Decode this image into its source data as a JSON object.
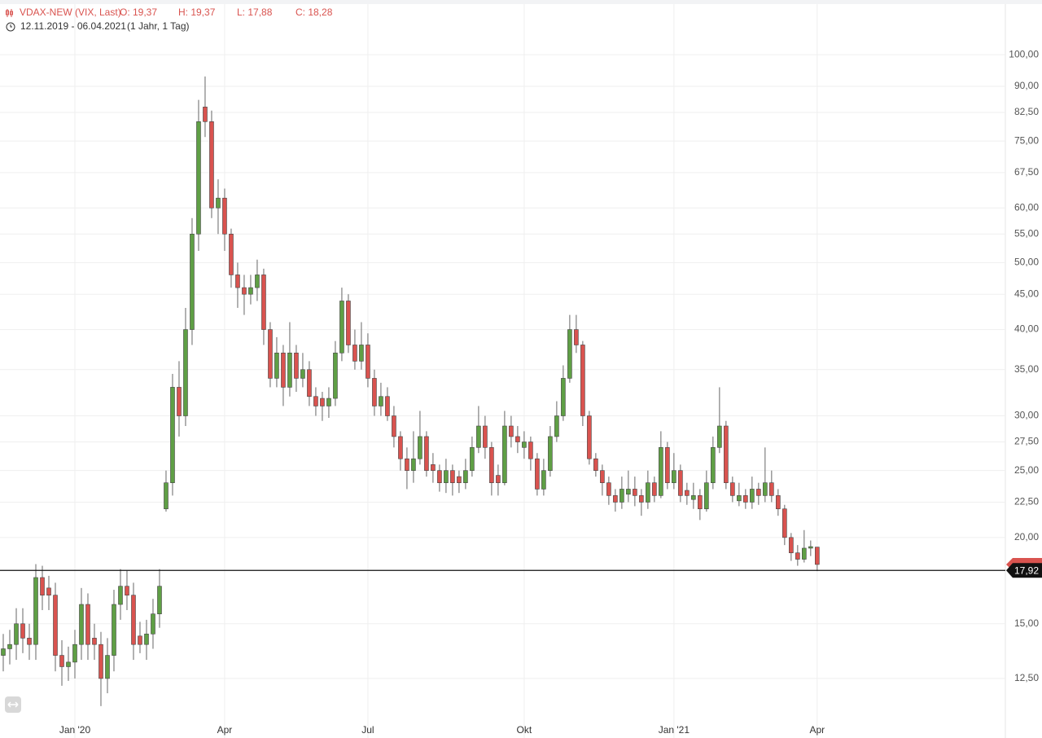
{
  "chart_data": {
    "type": "candlestick",
    "title": "VDAX-NEW (VIX, Last)",
    "ohlc_labels": [
      "O: 19,37",
      "H: 19,37",
      "L: 17,88",
      "C: 18,28"
    ],
    "range": "12.11.2019 - 06.04.2021",
    "period": "(1 Jahr, 1 Tag)",
    "log_scale": true,
    "grid": true,
    "up_color": "#5f9f45",
    "down_color": "#d9534f",
    "xlim": [
      -0.5,
      153.9
    ],
    "xticks": [
      {
        "value": 11,
        "label": "Jan '20"
      },
      {
        "value": 34,
        "label": "Apr"
      },
      {
        "value": 56,
        "label": "Jul"
      },
      {
        "value": 80,
        "label": "Okt"
      },
      {
        "value": 103,
        "label": "Jan '21"
      },
      {
        "value": 125,
        "label": "Apr"
      }
    ],
    "ylim": [
      10.25,
      120
    ],
    "yticks": [
      {
        "value": 12.5,
        "label": "12,50"
      },
      {
        "value": 15,
        "label": "15,00"
      },
      {
        "value": 20,
        "label": "20,00"
      },
      {
        "value": 22.5,
        "label": "22,50"
      },
      {
        "value": 25,
        "label": "25,00"
      },
      {
        "value": 27.5,
        "label": "27,50"
      },
      {
        "value": 30,
        "label": "30,00"
      },
      {
        "value": 35,
        "label": "35,00"
      },
      {
        "value": 40,
        "label": "40,00"
      },
      {
        "value": 45,
        "label": "45,00"
      },
      {
        "value": 50,
        "label": "50,00"
      },
      {
        "value": 55,
        "label": "55,00"
      },
      {
        "value": 60,
        "label": "60,00"
      },
      {
        "value": 67.5,
        "label": "67,50"
      },
      {
        "value": 75,
        "label": "75,00"
      },
      {
        "value": 82.5,
        "label": "82,50"
      },
      {
        "value": 90,
        "label": "90,00"
      },
      {
        "value": 100,
        "label": "100,00"
      }
    ],
    "current": {
      "value": 17.92,
      "label": "17,92"
    },
    "open": [
      13.5,
      13.8,
      14,
      15,
      14.3,
      14,
      17.5,
      16.9,
      16.5,
      13.5,
      13,
      13.2,
      14,
      16,
      14.3,
      14,
      12.5,
      13.5,
      16,
      17,
      16.5,
      14.4,
      14,
      14.5,
      15.5,
      22,
      24,
      33,
      30,
      40,
      55,
      84,
      80,
      60,
      62,
      55,
      48,
      46,
      45,
      46,
      48,
      40,
      34,
      37,
      33,
      37,
      34,
      35,
      32,
      31.8,
      31,
      31.8,
      37,
      44,
      38,
      36,
      38,
      34,
      31,
      32,
      30,
      28,
      26,
      25,
      26,
      28,
      25.5,
      25,
      24,
      25,
      24.5,
      24,
      25,
      27,
      29,
      27,
      24.6,
      24,
      29,
      28,
      27,
      27.5,
      26,
      23.5,
      25,
      28,
      30,
      34,
      40,
      38,
      30,
      26,
      25,
      24,
      23,
      22.5,
      23.1,
      23.5,
      23,
      22.5,
      24,
      23,
      27,
      24,
      25,
      23.4,
      22.7,
      23,
      22,
      24,
      27,
      29,
      24,
      22.6,
      23,
      22.5,
      23.5,
      23,
      24,
      23,
      22,
      20,
      19,
      18.6,
      19.3,
      19.37
    ],
    "high": [
      14.5,
      14.7,
      15.8,
      15.8,
      15,
      18.3,
      18.2,
      17.6,
      17.2,
      14.2,
      13.9,
      14.7,
      16.9,
      16.6,
      15,
      14.6,
      14.3,
      16.8,
      18,
      17.9,
      17.2,
      15.1,
      15.2,
      16.3,
      18,
      25,
      34.5,
      36,
      43,
      58,
      86,
      93,
      83,
      66,
      64,
      56,
      50,
      48,
      48,
      50.5,
      49,
      41,
      39,
      38,
      41,
      38,
      37,
      36,
      33,
      32.5,
      33,
      38.5,
      46,
      45,
      40,
      41,
      39.5,
      35,
      33.5,
      33,
      31,
      28.5,
      27,
      28.5,
      30.5,
      28.5,
      26.5,
      25.5,
      26,
      25.5,
      25,
      26,
      28,
      31,
      30,
      27.5,
      25.5,
      30.5,
      30,
      29,
      28.5,
      28,
      26.5,
      26,
      29,
      31.5,
      35.5,
      42,
      42,
      38.5,
      30.5,
      26.5,
      25.5,
      24.5,
      23.5,
      24.5,
      25,
      24.5,
      23.5,
      25,
      24.5,
      28.5,
      27.5,
      26.5,
      25.5,
      24,
      24,
      23.5,
      25,
      28,
      33,
      29.5,
      24.5,
      24,
      23.5,
      24.5,
      24,
      27,
      25,
      23.5,
      22.3,
      20.3,
      19.5,
      20.5,
      19.8,
      19.37
    ],
    "low": [
      12.8,
      13.1,
      13.3,
      13.6,
      13.3,
      13.3,
      15.7,
      15.7,
      12.8,
      12.2,
      12.4,
      12.5,
      13.3,
      13.3,
      13.3,
      11.4,
      11.9,
      12.8,
      15.2,
      15.7,
      13.3,
      13.6,
      13.3,
      13.8,
      14.8,
      21.8,
      23,
      28,
      29,
      38,
      52,
      76,
      58,
      55,
      52,
      46,
      43,
      42,
      43.5,
      44,
      38,
      33,
      33,
      31,
      32,
      32.5,
      33,
      31,
      30,
      29.5,
      29.8,
      31,
      36,
      37,
      35,
      35,
      33,
      30,
      30,
      29.5,
      27,
      25,
      23.5,
      24,
      25.5,
      24.5,
      24,
      23.3,
      23.2,
      23,
      23.2,
      23.5,
      24.5,
      26.5,
      26,
      23,
      23,
      23.8,
      27,
      26.5,
      26,
      25,
      23,
      23,
      24.5,
      27.5,
      29.5,
      33.5,
      37,
      29,
      25.5,
      24.5,
      23,
      22.3,
      21.8,
      22,
      22.5,
      22.2,
      21.5,
      22,
      22.5,
      22.8,
      23.5,
      23.5,
      22.5,
      22.3,
      22,
      21.2,
      21.8,
      23.5,
      26.5,
      23.5,
      22.5,
      22.2,
      22,
      22,
      22.3,
      22.5,
      22.5,
      21.5,
      19.5,
      18.5,
      18.2,
      18.4,
      18.8,
      17.88
    ],
    "close": [
      13.8,
      14,
      15,
      14.3,
      14,
      17.5,
      16.5,
      16.5,
      13.5,
      13,
      13.2,
      14,
      16,
      14,
      14,
      12.5,
      13.5,
      16,
      17,
      16.5,
      14,
      14,
      14.5,
      15.5,
      17,
      24,
      33,
      30,
      40,
      55,
      80,
      80,
      60,
      62,
      55,
      48,
      46,
      45,
      46,
      48,
      40,
      34,
      37,
      33,
      37,
      34,
      35,
      32,
      31,
      31,
      31.8,
      37,
      44,
      38,
      36,
      38,
      34,
      31,
      32,
      30,
      28,
      26,
      25,
      26,
      28,
      25,
      25,
      24,
      25,
      24,
      24,
      25,
      27,
      29,
      27,
      24,
      24,
      29,
      28,
      27.5,
      27.5,
      26,
      23.5,
      25,
      28,
      30,
      34,
      40,
      38,
      30,
      26,
      25,
      24,
      23,
      22.5,
      23.5,
      23.5,
      23,
      22.5,
      24,
      23,
      27,
      24,
      25,
      23,
      23,
      23,
      22,
      24,
      27,
      29,
      24,
      23,
      23,
      22.5,
      23.5,
      23,
      24,
      23,
      22,
      20,
      19,
      18.6,
      19.3,
      19.4,
      18.28
    ]
  }
}
